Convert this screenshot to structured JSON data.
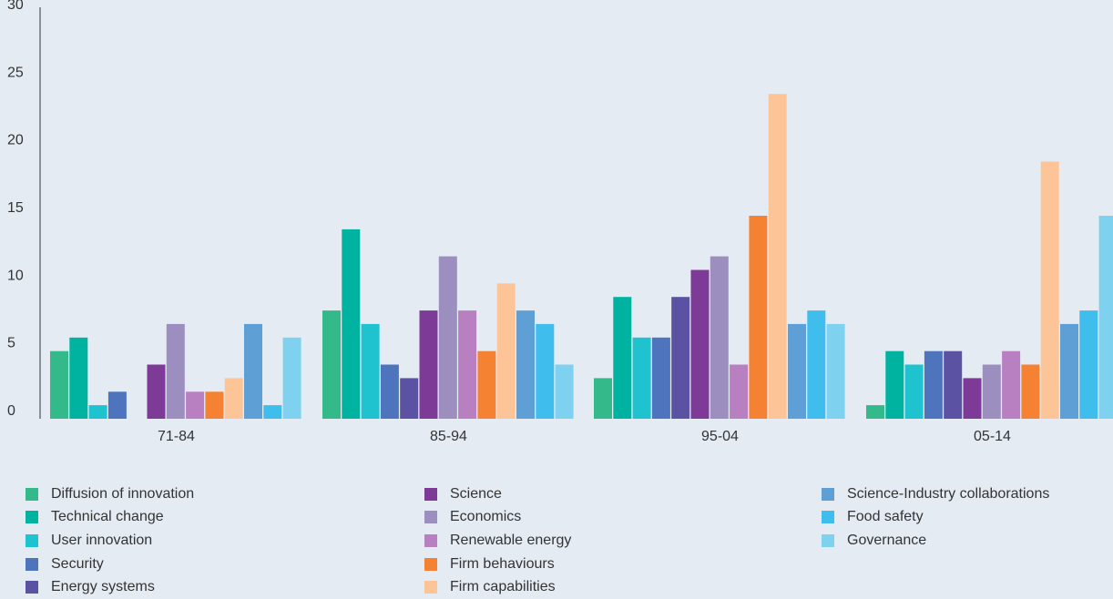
{
  "chart_data": {
    "type": "bar",
    "categories": [
      "71-84",
      "85-94",
      "95-04",
      "05-14"
    ],
    "ylim": [
      0,
      30
    ],
    "yticks": [
      0,
      5,
      10,
      15,
      20,
      25,
      30
    ],
    "grid": false,
    "legend_position": "bottom",
    "series": [
      {
        "name": "Diffusion of innovation",
        "color": "#33b98a",
        "values": [
          5,
          8,
          3,
          1
        ]
      },
      {
        "name": "Technical change",
        "color": "#00b3a0",
        "values": [
          6,
          14,
          9,
          5
        ]
      },
      {
        "name": "User innovation",
        "color": "#1fc2cf",
        "values": [
          1,
          7,
          6,
          4
        ]
      },
      {
        "name": "Security",
        "color": "#4e74bd",
        "values": [
          2,
          4,
          6,
          5
        ]
      },
      {
        "name": "Energy systems",
        "color": "#5b52a3",
        "values": [
          0,
          3,
          9,
          5
        ]
      },
      {
        "name": "Science",
        "color": "#7d3a97",
        "values": [
          4,
          8,
          11,
          3
        ]
      },
      {
        "name": "Economics",
        "color": "#9c8fc0",
        "values": [
          7,
          12,
          12,
          4
        ]
      },
      {
        "name": "Renewable energy",
        "color": "#b87fc1",
        "values": [
          2,
          8,
          4,
          5
        ]
      },
      {
        "name": "Firm behaviours",
        "color": "#f58232",
        "values": [
          2,
          5,
          15,
          4
        ]
      },
      {
        "name": "Firm capabilities",
        "color": "#fdc597",
        "values": [
          3,
          10,
          24,
          19
        ]
      },
      {
        "name": "Science-Industry collaborations",
        "color": "#5e9fd6",
        "values": [
          7,
          8,
          7,
          7
        ]
      },
      {
        "name": "Food safety",
        "color": "#3fbdec",
        "values": [
          1,
          7,
          8,
          8
        ]
      },
      {
        "name": "Governance",
        "color": "#7fd2ef",
        "values": [
          6,
          4,
          7,
          15
        ]
      }
    ]
  }
}
